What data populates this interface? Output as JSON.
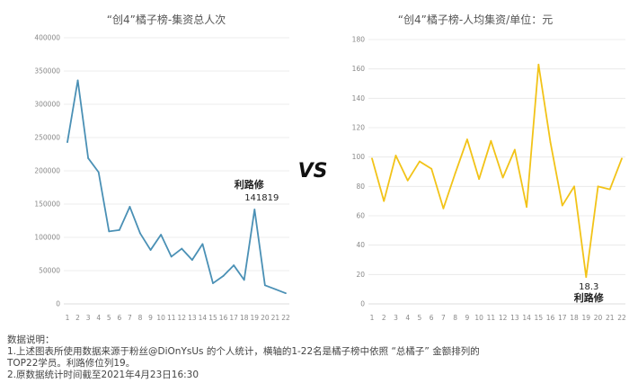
{
  "vs_text": "VS",
  "chart_data": [
    {
      "type": "line",
      "title": "“创4”橘子榜-集资总人次",
      "x": [
        1,
        2,
        3,
        4,
        5,
        6,
        7,
        8,
        9,
        10,
        11,
        12,
        13,
        14,
        15,
        16,
        17,
        18,
        19,
        20,
        21,
        22
      ],
      "series": [
        {
          "values": [
            243000,
            336000,
            219000,
            198000,
            109000,
            111000,
            146000,
            106000,
            81000,
            104000,
            71000,
            83000,
            66000,
            90000,
            31000,
            42000,
            58000,
            36000,
            141819,
            28000,
            22000,
            16000
          ]
        }
      ],
      "ylim": [
        0,
        400000
      ],
      "yticks": [
        0,
        50000,
        100000,
        150000,
        200000,
        250000,
        300000,
        350000,
        400000
      ],
      "line_color": "#4a90b5",
      "grid": true,
      "annotation": {
        "x": 19,
        "name": "利路修",
        "value": "141819"
      }
    },
    {
      "type": "line",
      "title": "“创4”橘子榜-人均集资/单位：元",
      "x": [
        1,
        2,
        3,
        4,
        5,
        6,
        7,
        8,
        9,
        10,
        11,
        12,
        13,
        14,
        15,
        16,
        17,
        18,
        19,
        20,
        21,
        22
      ],
      "series": [
        {
          "values": [
            99,
            70,
            101,
            84,
            97,
            92,
            65,
            89,
            112,
            85,
            111,
            86,
            105,
            66,
            163,
            110,
            67,
            80,
            18.3,
            80,
            78,
            99
          ]
        }
      ],
      "ylim": [
        0,
        180
      ],
      "yticks": [
        0,
        20,
        40,
        60,
        80,
        100,
        120,
        140,
        160,
        180
      ],
      "line_color": "#f2c318",
      "grid": true,
      "annotation": {
        "x": 19,
        "value": "18.3",
        "name": "利路修"
      }
    }
  ],
  "notes": {
    "heading": "数据说明：",
    "line1": "1.上述图表所使用数据来源于粉丝@DiOnYsUs 的个人统计，横轴的1-22名是橘子榜中依照 “总橘子” 金额排列的",
    "line2": "TOP22学员。利路修位列19。",
    "line3": "2.原数据统计时间截至2021年4月23日16:30"
  }
}
